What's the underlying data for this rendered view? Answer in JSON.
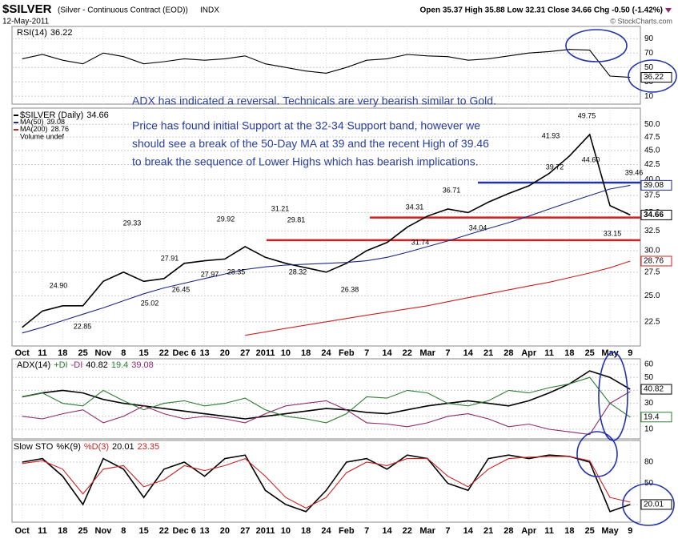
{
  "header": {
    "symbol": "$SILVER",
    "description": "(Silver - Continuous Contract (EOD))",
    "exchange": "INDX",
    "date": "12-May-2011",
    "quote": "Open 35.37 High 35.88 Low 32.31 Close 34.66 Chg -0.50 (-1.42%)",
    "credit": "© StockCharts.com"
  },
  "chart_data": [
    {
      "type": "line",
      "series": [
        {
          "name": "RSI(14)",
          "color": "#000000",
          "values": [
            62,
            68,
            60,
            55,
            70,
            65,
            55,
            58,
            62,
            60,
            62,
            66,
            55,
            50,
            45,
            42,
            50,
            60,
            62,
            68,
            66,
            65,
            60,
            62,
            66,
            70,
            72,
            75,
            74,
            38,
            36.22
          ]
        }
      ],
      "ylim": [
        -1,
        107
      ],
      "yticks": [
        10,
        30,
        50,
        70,
        90
      ],
      "grid": true
    },
    {
      "type": "line",
      "log": true,
      "categories": [
        "Oct",
        "11",
        "18",
        "25",
        "Nov",
        "8",
        "15",
        "22",
        "Dec 6",
        "13",
        "20",
        "27",
        "2011",
        "10",
        "18",
        "24",
        "Feb",
        "7",
        "14",
        "22",
        "Mar",
        "7",
        "14",
        "21",
        "28",
        "Apr",
        "11",
        "18",
        "25",
        "May",
        "9"
      ],
      "series": [
        {
          "name": "$SILVER (Daily)",
          "color": "#000000",
          "values": [
            22.0,
            23.5,
            24.0,
            24.0,
            26.5,
            27.5,
            26.5,
            26.8,
            28.5,
            28.8,
            29.0,
            30.5,
            29.2,
            28.5,
            28.0,
            27.5,
            28.5,
            30.0,
            31.0,
            33.0,
            34.5,
            35.5,
            35.0,
            36.5,
            37.8,
            39.0,
            41.0,
            44.0,
            48.0,
            36.0,
            34.66
          ]
        },
        {
          "name": "MA(50)",
          "color": "#1c2a80",
          "values": [
            21.5,
            22,
            22.6,
            23.2,
            23.8,
            24.5,
            25.2,
            25.8,
            26.3,
            26.8,
            27.3,
            27.8,
            28.1,
            28.3,
            28.4,
            28.5,
            28.6,
            28.8,
            29.2,
            29.8,
            30.5,
            31.2,
            32,
            32.8,
            33.6,
            34.5,
            35.5,
            36.5,
            37.5,
            38.5,
            39.08
          ]
        },
        {
          "name": "MA(200)",
          "color": "#cc2222",
          "values": [
            null,
            null,
            null,
            null,
            null,
            null,
            null,
            null,
            null,
            null,
            null,
            21.3,
            21.6,
            21.9,
            22.2,
            22.5,
            22.8,
            23.1,
            23.4,
            23.7,
            24.0,
            24.4,
            24.8,
            25.2,
            25.6,
            26.0,
            26.4,
            26.9,
            27.4,
            28.0,
            28.76
          ]
        }
      ],
      "legend_extra": "Volume undef",
      "ylim": [
        20.4,
        53.4
      ],
      "yticks": [
        22.5,
        {
          "value": 25,
          "label": "25.0"
        },
        27.5,
        {
          "value": 30,
          "label": "30.0"
        },
        32.5,
        {
          "value": 35,
          "label": "35.0"
        },
        37.5,
        {
          "value": 40,
          "label": "40.0"
        },
        42.5,
        {
          "value": 45,
          "label": "45.0"
        },
        47.5,
        {
          "value": 50,
          "label": "50.0"
        }
      ],
      "grid": true,
      "annotations": [
        "ADX has indicated a reversal. Technicals are very bearish similar to Gold.",
        "Price has found initial Support at the 32-34 Support band, however we",
        "should see a break of the 50-Day MA at 39 and the recent High of 39.46",
        "to break the sequence of Lower Highs which has bearish implications."
      ],
      "price_labels": [
        "49.75",
        "44.60",
        "41.93",
        "39.72",
        "39.46",
        "36.71",
        "34.31",
        "34.04",
        "33.15",
        "31.21",
        "29.81",
        "31.74",
        "29.92",
        "29.33",
        "27.91",
        "27.97",
        "28.35",
        "28.32",
        "26.38",
        "26.45",
        "25.02",
        "24.90",
        "22.85"
      ],
      "support_lines": [
        {
          "value": 39.5,
          "color": "#2233aa"
        },
        {
          "value": 34.3,
          "color": "#cc2222"
        },
        {
          "value": 31.3,
          "color": "#cc2222"
        }
      ]
    },
    {
      "type": "line",
      "series": [
        {
          "name": "ADX(14)",
          "color": "#000000",
          "values": [
            35,
            38,
            40,
            38,
            33,
            30,
            28,
            26,
            24,
            22,
            20,
            18,
            20,
            22,
            24,
            26,
            25,
            23,
            22,
            25,
            28,
            30,
            32,
            30,
            28,
            32,
            38,
            45,
            55,
            50,
            40.82
          ]
        },
        {
          "name": "+DI",
          "color": "#2e7d32",
          "values": [
            35,
            38,
            30,
            28,
            40,
            32,
            25,
            30,
            32,
            28,
            30,
            34,
            25,
            20,
            18,
            15,
            22,
            35,
            34,
            40,
            38,
            30,
            28,
            32,
            40,
            38,
            42,
            45,
            50,
            30,
            19.4
          ]
        },
        {
          "name": "-DI",
          "color": "#8e2a6e",
          "values": [
            20,
            18,
            22,
            25,
            15,
            20,
            28,
            22,
            18,
            20,
            18,
            15,
            22,
            28,
            30,
            32,
            25,
            15,
            14,
            12,
            15,
            20,
            22,
            18,
            12,
            14,
            10,
            8,
            6,
            30,
            39.08
          ]
        }
      ],
      "ylim": [
        2.6,
        64.3
      ],
      "yticks": [
        10,
        20,
        30,
        40,
        50,
        60
      ],
      "grid": true
    },
    {
      "type": "line",
      "title": "Slow STO",
      "series": [
        {
          "name": "%K(9)",
          "color": "#000000",
          "values": [
            80,
            85,
            60,
            20,
            85,
            70,
            30,
            70,
            80,
            60,
            85,
            90,
            40,
            20,
            10,
            40,
            80,
            85,
            70,
            90,
            85,
            50,
            40,
            85,
            90,
            85,
            90,
            88,
            80,
            10,
            20.01
          ]
        },
        {
          "name": "%D(3)",
          "color": "#cc2222",
          "values": [
            78,
            82,
            70,
            35,
            70,
            75,
            45,
            55,
            75,
            68,
            75,
            85,
            60,
            30,
            15,
            30,
            65,
            80,
            75,
            85,
            85,
            60,
            45,
            70,
            85,
            87,
            88,
            88,
            82,
            30,
            23.35
          ]
        }
      ],
      "ylim": [
        -5,
        110.6
      ],
      "yticks": [
        20,
        50,
        80
      ],
      "grid": true
    }
  ]
}
